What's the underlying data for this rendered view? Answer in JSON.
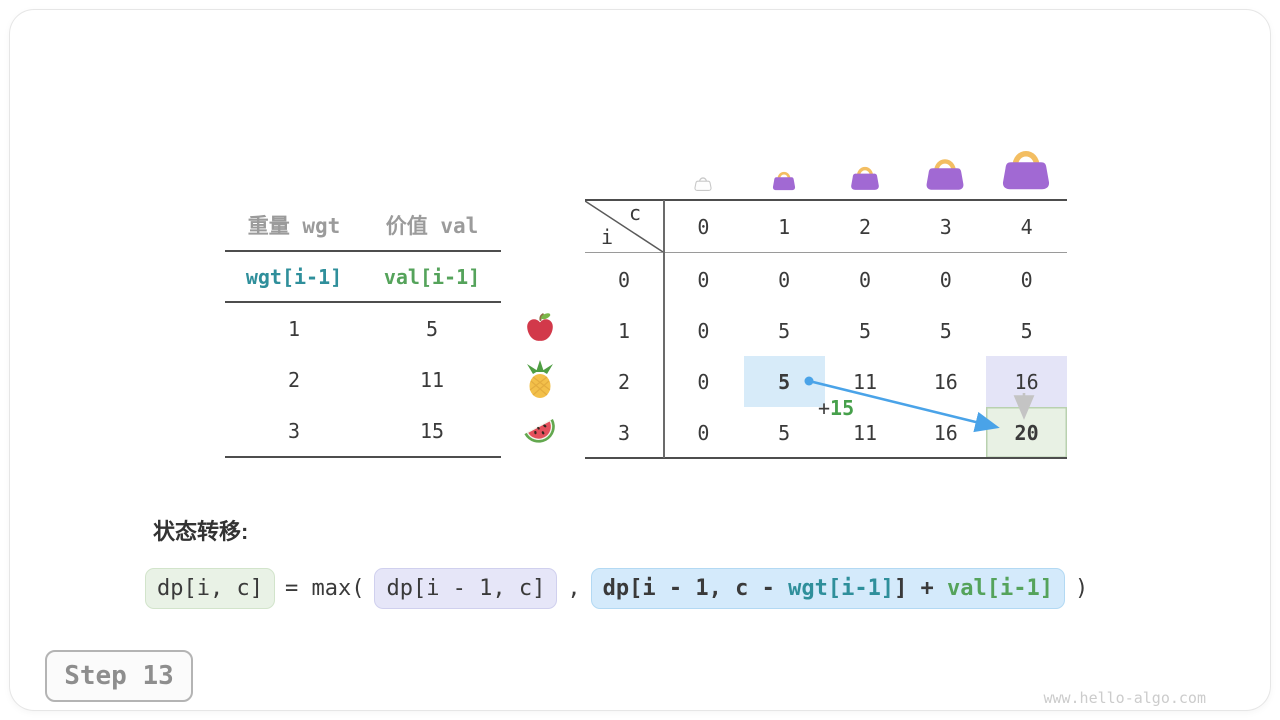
{
  "step_badge": {
    "label": "Step 13"
  },
  "watermark": "www.hello-algo.com",
  "items_table": {
    "headers": [
      "重量 wgt",
      "价值 val"
    ],
    "formula_row": {
      "wgt": "wgt[i-1]",
      "val": "val[i-1]"
    },
    "rows": [
      {
        "wgt": "1",
        "val": "5",
        "icon": "apple-icon"
      },
      {
        "wgt": "2",
        "val": "11",
        "icon": "pineapple-icon"
      },
      {
        "wgt": "3",
        "val": "15",
        "icon": "watermelon-icon"
      }
    ]
  },
  "dp_table": {
    "corner": {
      "col_var": "c",
      "row_var": "i"
    },
    "col_headers": [
      "0",
      "1",
      "2",
      "3",
      "4"
    ],
    "row_headers": [
      "0",
      "1",
      "2",
      "3"
    ],
    "cells": [
      [
        "0",
        "0",
        "0",
        "0",
        "0"
      ],
      [
        "0",
        "5",
        "5",
        "5",
        "5"
      ],
      [
        "0",
        "5",
        "11",
        "16",
        "16"
      ],
      [
        "0",
        "5",
        "11",
        "16",
        "20"
      ]
    ],
    "bags": [
      {
        "col": 0,
        "style": "ghost",
        "size": 18
      },
      {
        "col": 1,
        "style": "solid",
        "size": 24
      },
      {
        "col": 2,
        "style": "solid",
        "size": 30
      },
      {
        "col": 3,
        "style": "solid",
        "size": 40
      },
      {
        "col": 4,
        "style": "solid",
        "size": 50
      }
    ],
    "highlights": [
      {
        "row": 2,
        "col": 1,
        "style": "blue",
        "bold": true
      },
      {
        "row": 2,
        "col": 4,
        "style": "lavender",
        "bold": false
      },
      {
        "row": 3,
        "col": 4,
        "style": "green",
        "bold": true
      }
    ],
    "annotation": {
      "plus": "+",
      "value": "15"
    }
  },
  "transition": {
    "label": "状态转移:",
    "lhs": "dp[i, c]",
    "equals_max": "= max(",
    "arg1": "dp[i - 1, c]",
    "comma": ",",
    "arg2_parts": [
      {
        "text": "dp[i - 1, c - ",
        "color": "dark"
      },
      {
        "text": "wgt[i-1]",
        "color": "teal"
      },
      {
        "text": "] + ",
        "color": "dark"
      },
      {
        "text": "val[i-1]",
        "color": "green"
      }
    ],
    "close_paren": ")"
  },
  "colors": {
    "teal": "#2f8f9b",
    "green": "#55a35b",
    "annotation_green": "#46a04b",
    "arrow_blue": "#4aa3e8",
    "arrow_gray": "#c4c4c4",
    "highlight_blue": "#d7ebf9",
    "highlight_lavender": "#e4e4f7",
    "highlight_green": "#e8f1e4",
    "bag_purple": "#a169d3",
    "bag_handle": "#f3be62",
    "bag_ghost": "#c8c8c8"
  }
}
